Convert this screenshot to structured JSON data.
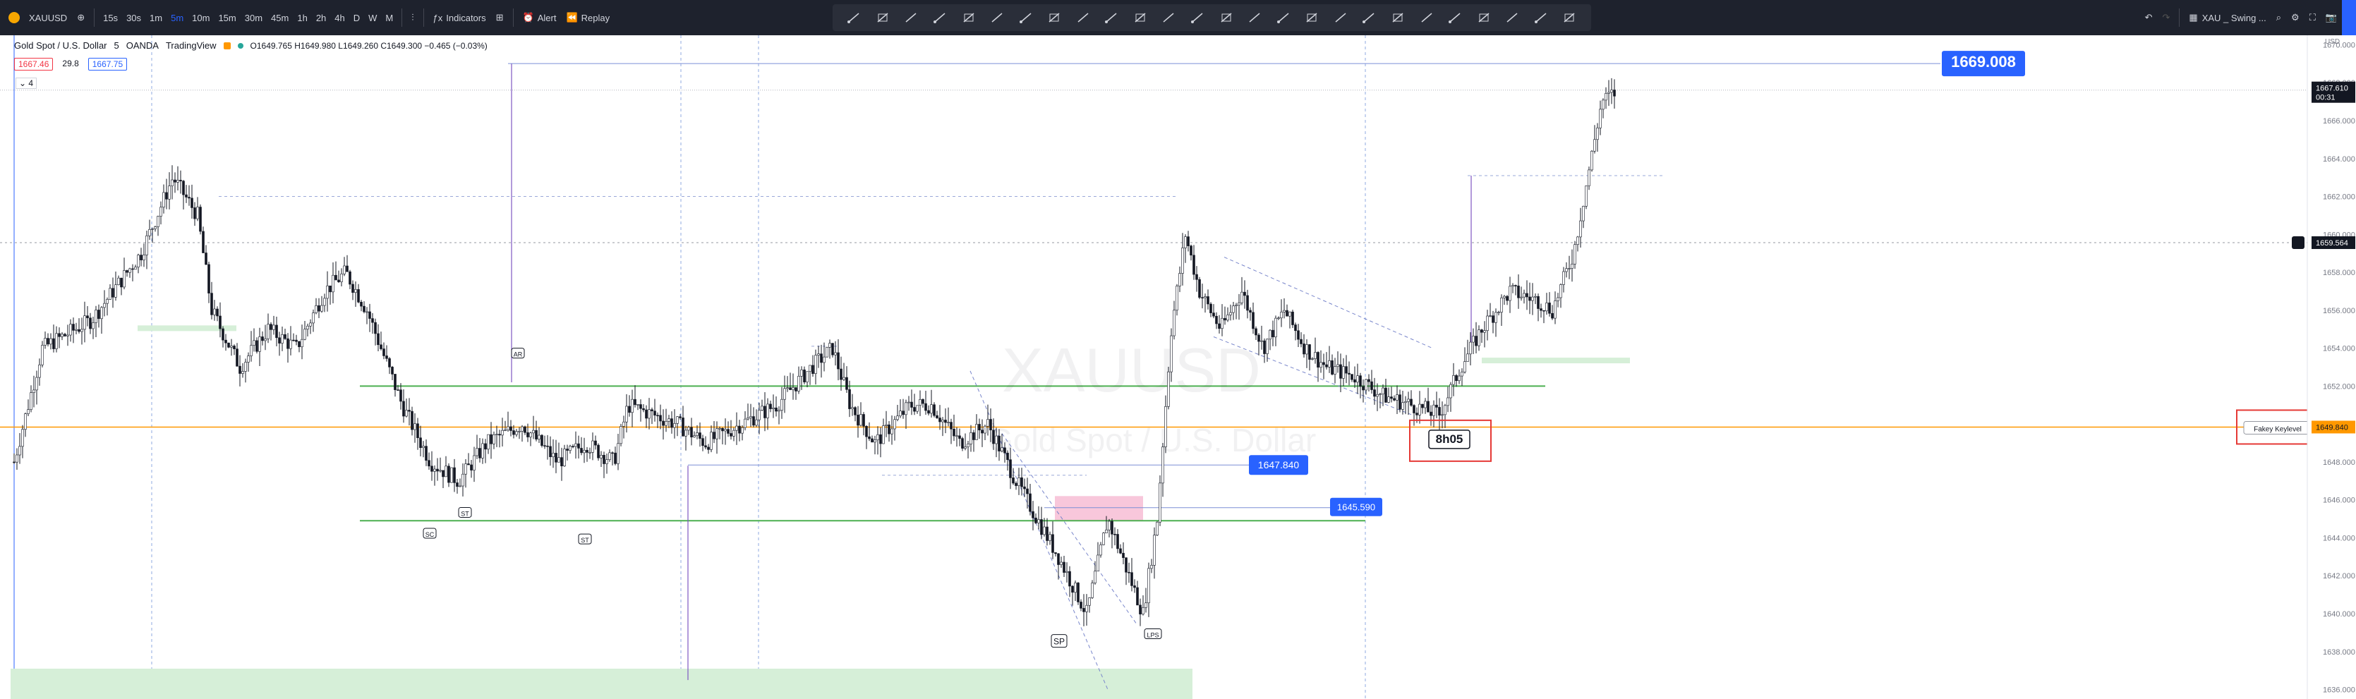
{
  "toolbar": {
    "symbol": "XAUUSD",
    "intervals": [
      "15s",
      "30s",
      "1m",
      "5m",
      "10m",
      "15m",
      "30m",
      "45m",
      "1h",
      "2h",
      "4h",
      "D",
      "W",
      "M"
    ],
    "active_interval": "5m",
    "indicators_label": "Indicators",
    "alert_label": "Alert",
    "replay_label": "Replay",
    "layout_name": "XAU _ Swing ..."
  },
  "legend": {
    "title": "Gold Spot / U.S. Dollar",
    "interval": "5",
    "broker": "OANDA",
    "platform": "TradingView",
    "ohlc": "O1649.765 H1649.980 L1649.260 C1649.300 −0.465 (−0.03%)",
    "bid": "1667.46",
    "spread": "29.8",
    "ask": "1667.75",
    "indicator_count": "4"
  },
  "watermark": {
    "symbol": "XAUUSD",
    "name": "Gold Spot / U.S. Dollar"
  },
  "price_axis": {
    "usd": "USD",
    "ticks": [
      "1670.000",
      "1668.000",
      "1666.000",
      "1664.000",
      "1662.000",
      "1660.000",
      "1658.000",
      "1656.000",
      "1654.000",
      "1652.000",
      "1650.000",
      "1648.000",
      "1646.000",
      "1644.000",
      "1642.000",
      "1640.000",
      "1638.000",
      "1636.000"
    ],
    "current_price": "1667.610",
    "countdown": "00:31",
    "crosshair_price": "1659.564",
    "key_level_price": "1649.840"
  },
  "chart_data": {
    "type": "candlestick",
    "y_range": [
      1635.5,
      1670.5
    ],
    "horizontal_levels": [
      {
        "label": "1669.008",
        "price": 1669.008
      },
      {
        "label": "1647.840",
        "price": 1647.84
      },
      {
        "label": "1645.590",
        "price": 1645.59
      },
      {
        "label": "Fakey Keylevel",
        "price": 1649.84
      }
    ],
    "annotations": [
      "8h05",
      "SP",
      "LPS",
      "ST",
      "SC",
      "AR"
    ]
  }
}
